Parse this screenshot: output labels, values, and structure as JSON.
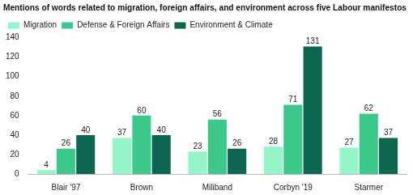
{
  "chart_data": {
    "type": "bar",
    "title": "Mentions of words related to migration, foreign affairs, and environment across five Labour manifestos",
    "categories": [
      "Blair '97",
      "Brown",
      "Miliband",
      "Corbyn '19",
      "Starmer"
    ],
    "series": [
      {
        "name": "Migration",
        "color": "#93f5c8",
        "values": [
          4,
          37,
          23,
          28,
          27
        ]
      },
      {
        "name": "Defense & Foreign Affairs",
        "color": "#3cc88a",
        "values": [
          26,
          60,
          56,
          71,
          62
        ]
      },
      {
        "name": "Environment & Climate",
        "color": "#0c6650",
        "values": [
          40,
          40,
          26,
          131,
          37
        ]
      }
    ],
    "ylim": [
      0,
      140
    ],
    "yticks": [
      0,
      20,
      40,
      60,
      80,
      100,
      120,
      140
    ],
    "grid": false,
    "legend": "top-left",
    "data_labels": true
  }
}
